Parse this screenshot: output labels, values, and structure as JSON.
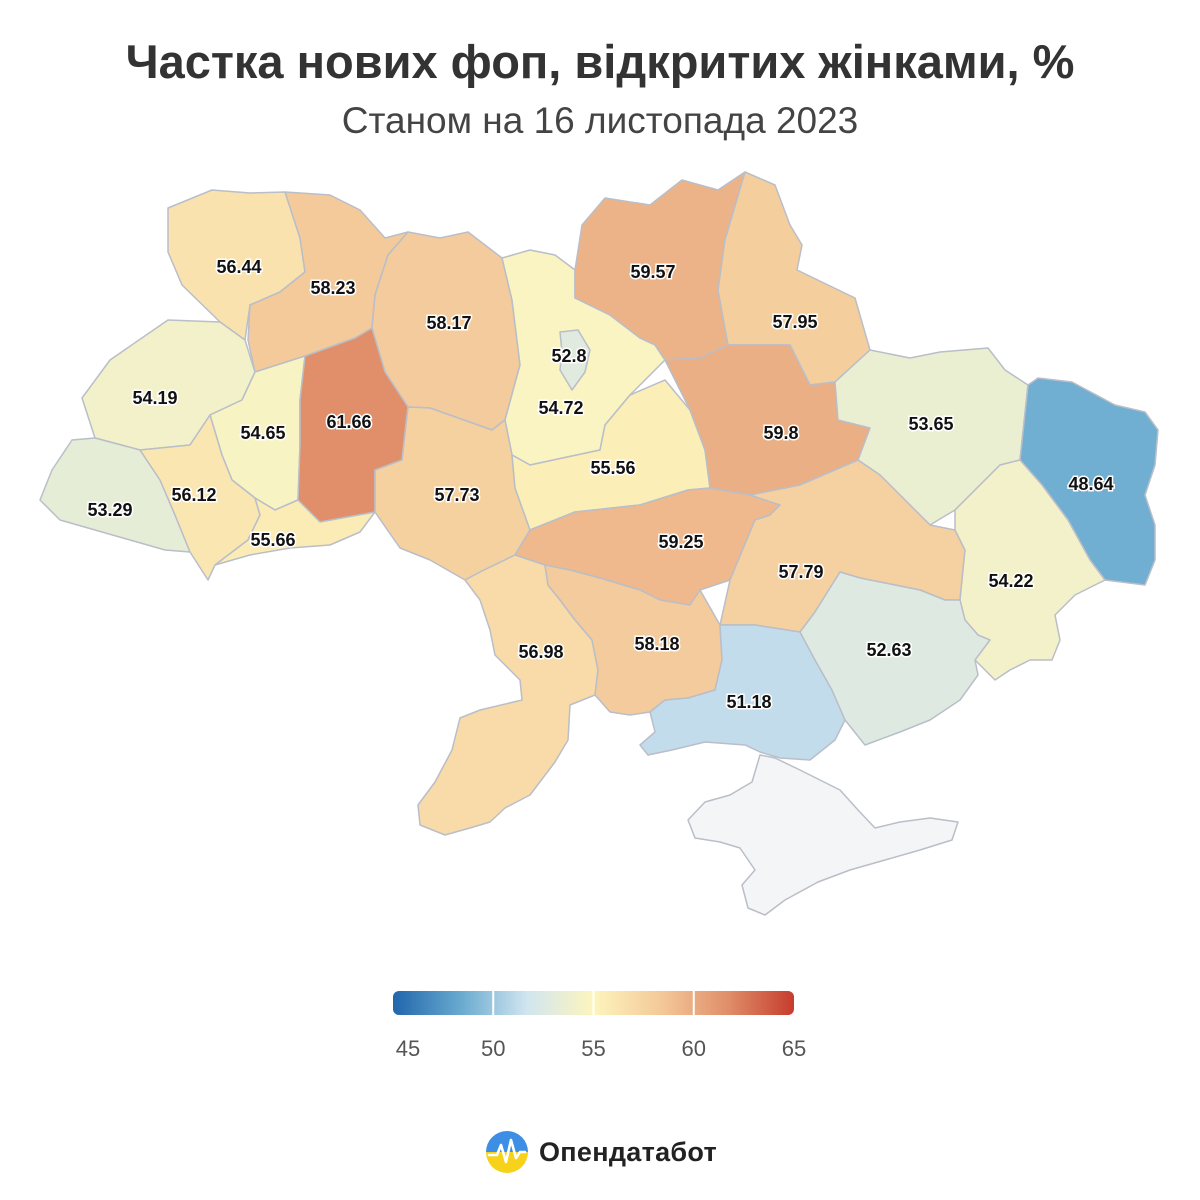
{
  "header": {
    "title": "Частка нових фоп, відкритих жінками, %",
    "subtitle": "Станом на 16 листопада 2023"
  },
  "map": {
    "regions": [
      {
        "id": "volyn",
        "value": 56.44
      },
      {
        "id": "rivne",
        "value": 58.23
      },
      {
        "id": "zhytomyr",
        "value": 58.17
      },
      {
        "id": "kyiv-oblast",
        "value": 54.72
      },
      {
        "id": "kyiv-city",
        "value": 52.8
      },
      {
        "id": "chernihiv",
        "value": 59.57
      },
      {
        "id": "sumy",
        "value": 57.95
      },
      {
        "id": "lviv",
        "value": 54.19
      },
      {
        "id": "ternopil",
        "value": 54.65
      },
      {
        "id": "khmelnytskyi",
        "value": 61.66
      },
      {
        "id": "vinnytsia",
        "value": 57.73
      },
      {
        "id": "cherkasy",
        "value": 55.56
      },
      {
        "id": "poltava",
        "value": 59.8
      },
      {
        "id": "kharkiv",
        "value": 53.65
      },
      {
        "id": "luhansk",
        "value": 48.64
      },
      {
        "id": "zakarpattia",
        "value": 53.29
      },
      {
        "id": "ivano-frankivsk",
        "value": 56.12
      },
      {
        "id": "chernivtsi",
        "value": 55.66
      },
      {
        "id": "kirovohrad",
        "value": 59.25
      },
      {
        "id": "dnipropetrovsk",
        "value": 57.79
      },
      {
        "id": "donetsk",
        "value": 54.22
      },
      {
        "id": "odesa",
        "value": 56.98
      },
      {
        "id": "mykolaiv",
        "value": 58.18
      },
      {
        "id": "kherson",
        "value": 51.18
      },
      {
        "id": "zaporizhzhia",
        "value": 52.63
      },
      {
        "id": "crimea",
        "value": null
      }
    ]
  },
  "legend": {
    "ticks": [
      "45",
      "50",
      "55",
      "60",
      "65"
    ],
    "colors": [
      "#2166ac",
      "#67a9cf",
      "#d1e5f0",
      "#fdf5bd",
      "#f4c99a",
      "#e08f6a",
      "#c63c2d"
    ]
  },
  "brand": {
    "name": "Опендатабот",
    "icon": "opendatabot-logo-icon"
  }
}
